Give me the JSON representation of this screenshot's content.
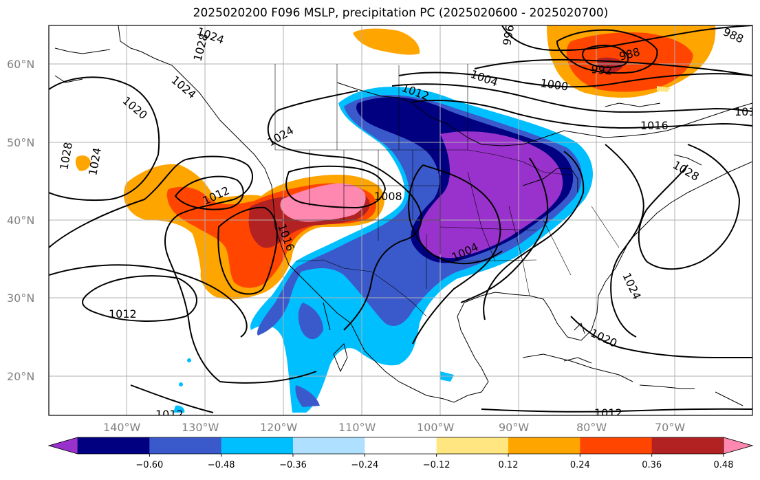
{
  "title": "2025020200 F096 MSLP, precipitation PC (2025020600 - 2025020700)",
  "map": {
    "lon_labels": [
      "140°W",
      "130°W",
      "120°W",
      "110°W",
      "100°W",
      "90°W",
      "80°W",
      "70°W"
    ],
    "lat_labels": [
      "60°N",
      "50°N",
      "40°N",
      "30°N",
      "20°N"
    ],
    "gridlines": true,
    "isobar_labels": [
      "1024",
      "1028",
      "1020",
      "1028",
      "1024",
      "1012",
      "1024",
      "1024",
      "1012",
      "1008",
      "1016",
      "1004",
      "1012",
      "1004",
      "1000",
      "996",
      "992",
      "988",
      "988",
      "1016",
      "1028",
      "1024",
      "1020",
      "1012",
      "1012",
      "1012"
    ]
  },
  "colorbar": {
    "ticks": [
      "−0.60",
      "−0.48",
      "−0.36",
      "−0.24",
      "−0.12",
      "0.12",
      "0.24",
      "0.36",
      "0.48",
      "0.60"
    ],
    "colors": [
      "#9932cc",
      "#000080",
      "#3a5acc",
      "#00bfff",
      "#b0e0ff",
      "#ffffff",
      "#ffe680",
      "#ffa500",
      "#ff4500",
      "#b22222",
      "#ff88b0"
    ],
    "extend": "both"
  }
}
